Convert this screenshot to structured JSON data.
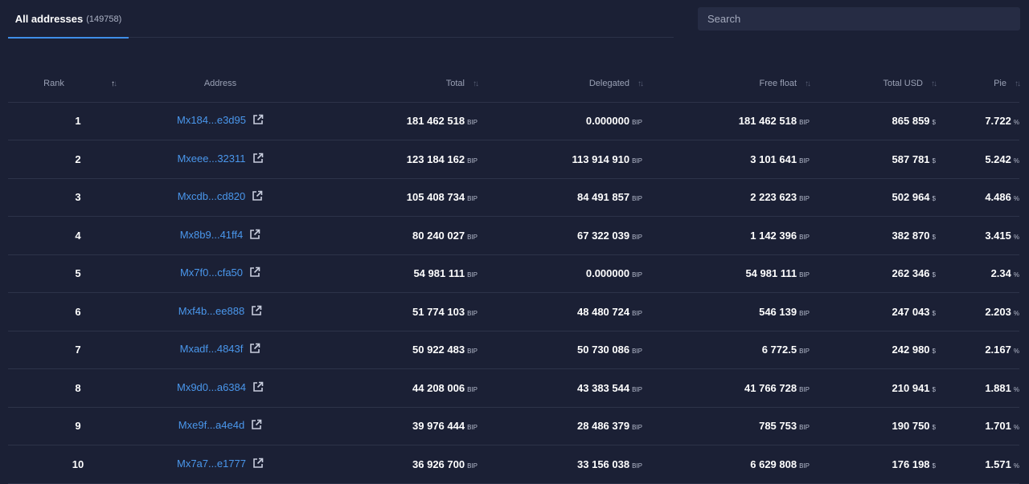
{
  "tabs": [
    {
      "label": "All addresses",
      "count": "(149758)"
    }
  ],
  "search": {
    "placeholder": "Search"
  },
  "columns": {
    "rank": "Rank",
    "address": "Address",
    "total": "Total",
    "delegated": "Delegated",
    "free_float": "Free float",
    "total_usd": "Total USD",
    "pie": "Pie"
  },
  "units": {
    "bip": "BIP",
    "usd": "$",
    "pct": "%"
  },
  "sort_glyphs": {
    "up": "↑",
    "down": "↓"
  },
  "icons": {
    "external_link": "external-link-icon"
  },
  "colors": {
    "background": "#1b2035",
    "link": "#4a97ec",
    "tab_accent": "#3f8ee8"
  },
  "rows": [
    {
      "rank": "1",
      "address": "Mx184...e3d95",
      "total": "181 462 518",
      "delegated": "0.000000",
      "free_float": "181 462 518",
      "total_usd": "865 859",
      "pie": "7.722"
    },
    {
      "rank": "2",
      "address": "Mxeee...32311",
      "total": "123 184 162",
      "delegated": "113 914 910",
      "free_float": "3 101 641",
      "total_usd": "587 781",
      "pie": "5.242"
    },
    {
      "rank": "3",
      "address": "Mxcdb...cd820",
      "total": "105 408 734",
      "delegated": "84 491 857",
      "free_float": "2 223 623",
      "total_usd": "502 964",
      "pie": "4.486"
    },
    {
      "rank": "4",
      "address": "Mx8b9...41ff4",
      "total": "80 240 027",
      "delegated": "67 322 039",
      "free_float": "1 142 396",
      "total_usd": "382 870",
      "pie": "3.415"
    },
    {
      "rank": "5",
      "address": "Mx7f0...cfa50",
      "total": "54 981 111",
      "delegated": "0.000000",
      "free_float": "54 981 111",
      "total_usd": "262 346",
      "pie": "2.34"
    },
    {
      "rank": "6",
      "address": "Mxf4b...ee888",
      "total": "51 774 103",
      "delegated": "48 480 724",
      "free_float": "546 139",
      "total_usd": "247 043",
      "pie": "2.203"
    },
    {
      "rank": "7",
      "address": "Mxadf...4843f",
      "total": "50 922 483",
      "delegated": "50 730 086",
      "free_float": "6 772.5",
      "total_usd": "242 980",
      "pie": "2.167"
    },
    {
      "rank": "8",
      "address": "Mx9d0...a6384",
      "total": "44 208 006",
      "delegated": "43 383 544",
      "free_float": "41 766 728",
      "total_usd": "210 941",
      "pie": "1.881"
    },
    {
      "rank": "9",
      "address": "Mxe9f...a4e4d",
      "total": "39 976 444",
      "delegated": "28 486 379",
      "free_float": "785 753",
      "total_usd": "190 750",
      "pie": "1.701"
    },
    {
      "rank": "10",
      "address": "Mx7a7...e1777",
      "total": "36 926 700",
      "delegated": "33 156 038",
      "free_float": "6 629 808",
      "total_usd": "176 198",
      "pie": "1.571"
    }
  ]
}
